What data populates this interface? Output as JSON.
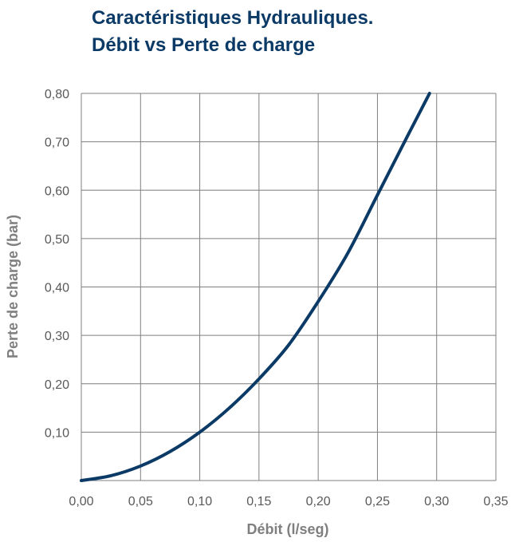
{
  "chart_data": {
    "type": "line",
    "title_lines": [
      "Caractéristiques Hydrauliques.",
      "Débit vs Perte de charge"
    ],
    "xlabel": "Débit (l/seg)",
    "ylabel": "Perte de charge (bar)",
    "xlim": [
      0,
      0.35
    ],
    "ylim": [
      0,
      0.8
    ],
    "x_ticks": [
      0,
      0.05,
      0.1,
      0.15,
      0.2,
      0.25,
      0.3,
      0.35
    ],
    "x_tick_labels": [
      "0,00",
      "0,05",
      "0,10",
      "0,15",
      "0,20",
      "0,25",
      "0,30",
      "0,35"
    ],
    "y_ticks": [
      0.1,
      0.2,
      0.3,
      0.4,
      0.5,
      0.6,
      0.7,
      0.8
    ],
    "y_tick_labels": [
      "0,10",
      "0,20",
      "0,30",
      "0,40",
      "0,50",
      "0,60",
      "0,70",
      "0,80"
    ],
    "grid": true,
    "series": [
      {
        "color": "#0b3a66",
        "x": [
          0,
          0.025,
          0.05,
          0.075,
          0.1,
          0.125,
          0.15,
          0.175,
          0.2,
          0.225,
          0.25,
          0.275,
          0.294
        ],
        "y": [
          0,
          0.01,
          0.03,
          0.06,
          0.1,
          0.15,
          0.21,
          0.28,
          0.37,
          0.47,
          0.59,
          0.71,
          0.8
        ]
      }
    ],
    "colors": {
      "grid": "#7f7f7f",
      "tick_text": "#595959",
      "axis_label": "#7f7f7f",
      "title": "#0b3a66"
    }
  }
}
